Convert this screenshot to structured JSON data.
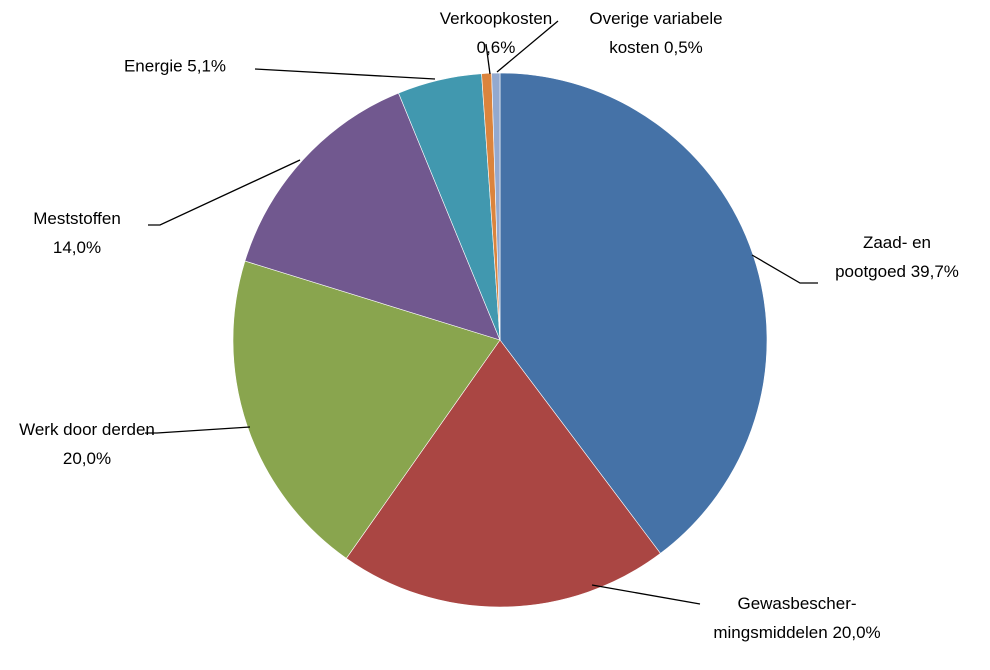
{
  "chart_data": {
    "type": "pie",
    "categories": [
      "Zaad- en pootgoed",
      "Gewasbescher-mingsmiddelen",
      "Werk door derden",
      "Meststoffen",
      "Energie",
      "Verkoopkosten",
      "Overige variabele kosten"
    ],
    "values": [
      39.7,
      20.0,
      20.0,
      14.0,
      5.1,
      0.6,
      0.5
    ],
    "value_labels": [
      "39,7%",
      "20,0%",
      "20,0%",
      "14,0%",
      "5,1%",
      "0,6%",
      "0,5%"
    ],
    "colors": [
      "#4572a7",
      "#aa4643",
      "#89a54e",
      "#71588f",
      "#4198af",
      "#db843d",
      "#93a9cf"
    ]
  }
}
